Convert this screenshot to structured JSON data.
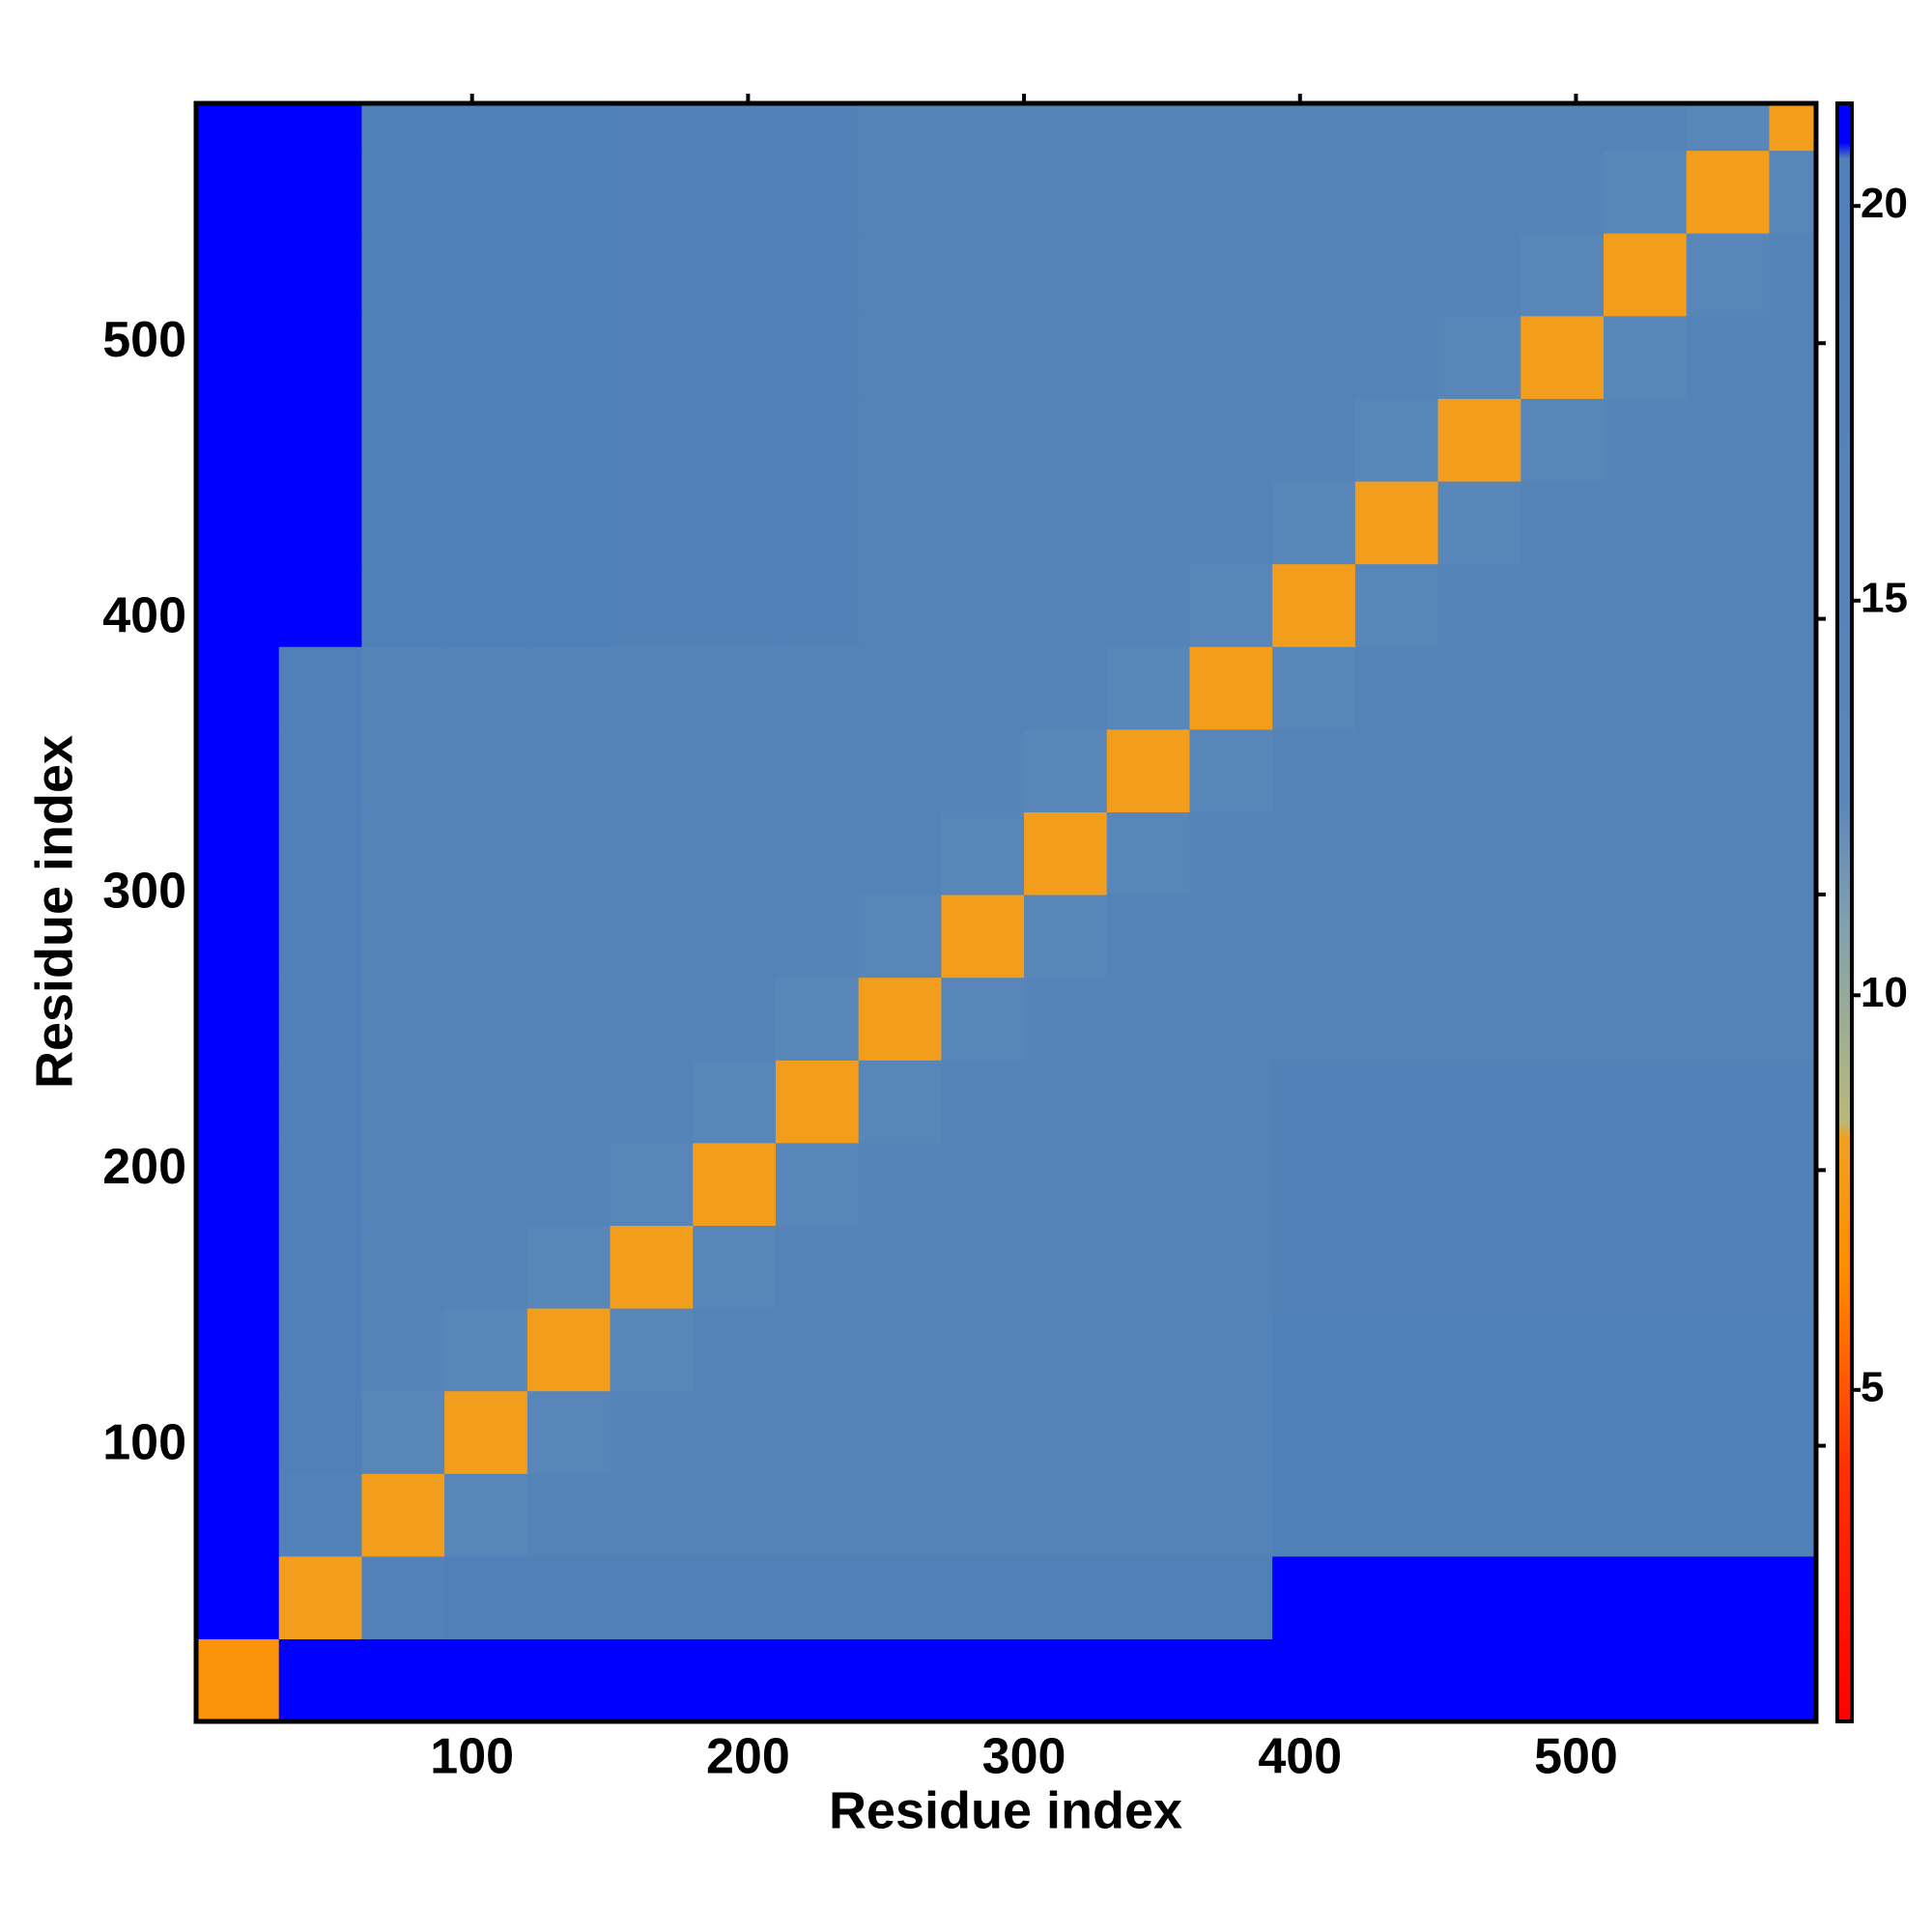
{
  "chart_data": {
    "type": "heatmap",
    "x_label": "Residue index",
    "y_label": "Residue index",
    "xlim": [
      0,
      587
    ],
    "ylim": [
      0,
      587
    ],
    "xticks": [
      100,
      200,
      300,
      400,
      500
    ],
    "yticks": [
      100,
      200,
      300,
      400,
      500
    ],
    "bins": [
      0,
      30,
      60,
      90,
      120,
      150,
      180,
      210,
      240,
      270,
      300,
      330,
      360,
      390,
      420,
      450,
      480,
      510,
      540,
      570,
      587
    ],
    "z": [
      [
        7,
        21,
        21,
        21,
        21,
        21,
        21,
        21,
        21,
        21,
        21,
        21,
        21,
        21,
        21,
        21,
        21,
        21,
        21,
        21
      ],
      [
        21,
        8,
        18,
        20,
        20,
        20,
        20,
        20,
        20,
        20,
        20,
        20,
        20,
        21,
        21,
        21,
        21,
        21,
        21,
        21
      ],
      [
        21,
        18,
        8,
        13,
        17,
        17,
        17,
        17,
        17,
        17,
        17,
        17,
        17,
        20.5,
        20.5,
        20.5,
        20.5,
        20.5,
        20.5,
        20.5
      ],
      [
        21,
        20,
        13,
        8,
        13,
        17,
        17,
        17,
        17,
        17,
        17,
        17,
        17,
        20.5,
        20.5,
        20.5,
        20.5,
        20.5,
        20.5,
        20.5
      ],
      [
        21,
        20,
        17,
        13,
        8,
        13,
        17,
        17,
        17,
        17,
        17,
        17,
        17,
        20.5,
        20.5,
        20.5,
        20.5,
        20.5,
        20.5,
        20.5
      ],
      [
        21,
        20,
        17,
        17,
        13,
        8,
        13,
        17,
        17,
        17,
        17,
        17,
        17,
        19,
        19,
        19,
        19,
        19,
        19,
        19
      ],
      [
        21,
        20,
        17,
        17,
        17,
        13,
        8,
        13,
        17,
        17,
        17,
        17,
        17,
        19,
        19,
        19,
        19,
        19,
        19,
        19
      ],
      [
        21,
        20,
        17,
        17,
        17,
        17,
        13,
        8,
        13,
        17,
        17,
        17,
        17,
        19,
        19,
        19,
        19,
        19,
        19,
        19
      ],
      [
        21,
        20,
        17,
        17,
        17,
        17,
        17,
        13,
        8,
        13,
        17,
        17,
        17,
        17,
        17,
        17,
        17,
        17,
        17,
        17
      ],
      [
        21,
        20,
        17,
        17,
        17,
        17,
        17,
        17,
        13,
        8,
        13,
        17,
        17,
        17,
        17,
        17,
        17,
        17,
        17,
        17
      ],
      [
        21,
        20,
        17,
        17,
        17,
        17,
        17,
        17,
        17,
        13,
        8,
        13,
        17,
        17,
        17,
        17,
        17,
        17,
        17,
        17
      ],
      [
        21,
        20,
        17,
        17,
        17,
        17,
        17,
        17,
        17,
        17,
        13,
        8,
        13,
        17,
        17,
        17,
        17,
        17,
        17,
        17
      ],
      [
        21,
        20,
        17,
        17,
        17,
        17,
        17,
        17,
        17,
        17,
        17,
        13,
        8,
        13,
        17,
        17,
        17,
        17,
        17,
        17
      ],
      [
        21,
        21,
        20.5,
        20.5,
        20.5,
        19,
        19,
        19,
        17,
        17,
        17,
        17,
        13,
        8,
        13,
        17,
        17,
        17,
        17,
        17
      ],
      [
        21,
        21,
        20.5,
        20.5,
        20.5,
        19,
        19,
        19,
        17,
        17,
        17,
        17,
        17,
        13,
        8,
        13,
        17,
        17,
        17,
        17
      ],
      [
        21,
        21,
        20.5,
        20.5,
        20.5,
        19,
        19,
        19,
        17,
        17,
        17,
        17,
        17,
        17,
        13,
        8,
        13,
        17,
        17,
        17
      ],
      [
        21,
        21,
        20.5,
        20.5,
        20.5,
        19,
        19,
        19,
        17,
        17,
        17,
        17,
        17,
        17,
        17,
        13,
        8,
        13,
        17,
        17
      ],
      [
        21,
        21,
        20.5,
        20.5,
        20.5,
        19,
        19,
        19,
        17,
        17,
        17,
        17,
        17,
        17,
        17,
        17,
        13,
        8,
        13,
        17
      ],
      [
        21,
        21,
        20.5,
        20.5,
        20.5,
        19,
        19,
        19,
        17,
        17,
        17,
        17,
        17,
        17,
        17,
        17,
        17,
        13,
        8,
        13
      ],
      [
        21,
        21,
        20.5,
        20.5,
        20.5,
        19,
        19,
        19,
        17,
        17,
        17,
        17,
        17,
        17,
        17,
        17,
        17,
        17,
        13,
        8
      ]
    ],
    "zlim": [
      0.8,
      21.3
    ],
    "zticks": [
      5,
      10,
      15,
      20
    ],
    "colorscale": [
      {
        "value": 0.8,
        "color": "#ff0000"
      },
      {
        "value": 4,
        "color": "#ff3000"
      },
      {
        "value": 6.5,
        "color": "#ff8c00"
      },
      {
        "value": 8.2,
        "color": "#f0a020"
      },
      {
        "value": 8.4,
        "color": "#b8b87a"
      },
      {
        "value": 11,
        "color": "#7f9fb0"
      },
      {
        "value": 12.5,
        "color": "#5a86b8"
      },
      {
        "value": 20.6,
        "color": "#5080b8"
      },
      {
        "value": 20.8,
        "color": "#0000ff"
      },
      {
        "value": 21.3,
        "color": "#0000ff"
      }
    ]
  }
}
